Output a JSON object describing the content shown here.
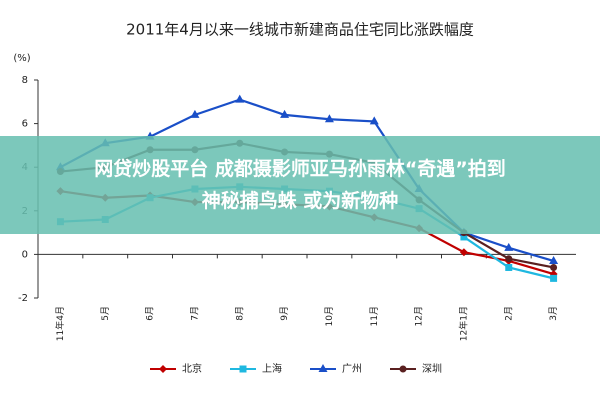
{
  "chart_data": {
    "type": "line",
    "title": "2011年4月以来一线城市新建商品住宅同比涨跌幅度",
    "y_label": "(%)",
    "categories": [
      "11年4月",
      "5月",
      "6月",
      "7月",
      "8月",
      "9月",
      "10月",
      "11月",
      "12月",
      "12年1月",
      "2月",
      "3月"
    ],
    "series": [
      {
        "name": "北京",
        "color": "#c00000",
        "marker": "diamond",
        "values": [
          2.9,
          2.6,
          2.7,
          2.4,
          2.4,
          2.3,
          2.2,
          1.7,
          1.2,
          0.1,
          -0.3,
          -0.9
        ]
      },
      {
        "name": "上海",
        "color": "#1fb8e0",
        "marker": "square",
        "values": [
          1.5,
          1.6,
          2.6,
          3.0,
          3.1,
          3.0,
          2.9,
          2.6,
          2.1,
          0.8,
          -0.6,
          -1.1
        ]
      },
      {
        "name": "广州",
        "color": "#1a4fc8",
        "marker": "triangle",
        "values": [
          4.0,
          5.1,
          5.4,
          6.4,
          7.1,
          6.4,
          6.2,
          6.1,
          3.0,
          1.0,
          0.3,
          -0.3
        ]
      },
      {
        "name": "深圳",
        "color": "#5a2020",
        "marker": "circle",
        "values": [
          3.8,
          4.0,
          4.8,
          4.8,
          5.1,
          4.7,
          4.6,
          4.2,
          2.5,
          1.0,
          -0.2,
          -0.6
        ]
      }
    ],
    "ylim": [
      -2,
      8
    ],
    "yticks": [
      -2,
      0,
      2,
      4,
      6,
      8
    ],
    "overlay": [
      "网贷炒股平台 成都摄影师亚马孙雨林“奇遇”拍到",
      "神秘捕鸟蛛 或为新物种"
    ]
  }
}
